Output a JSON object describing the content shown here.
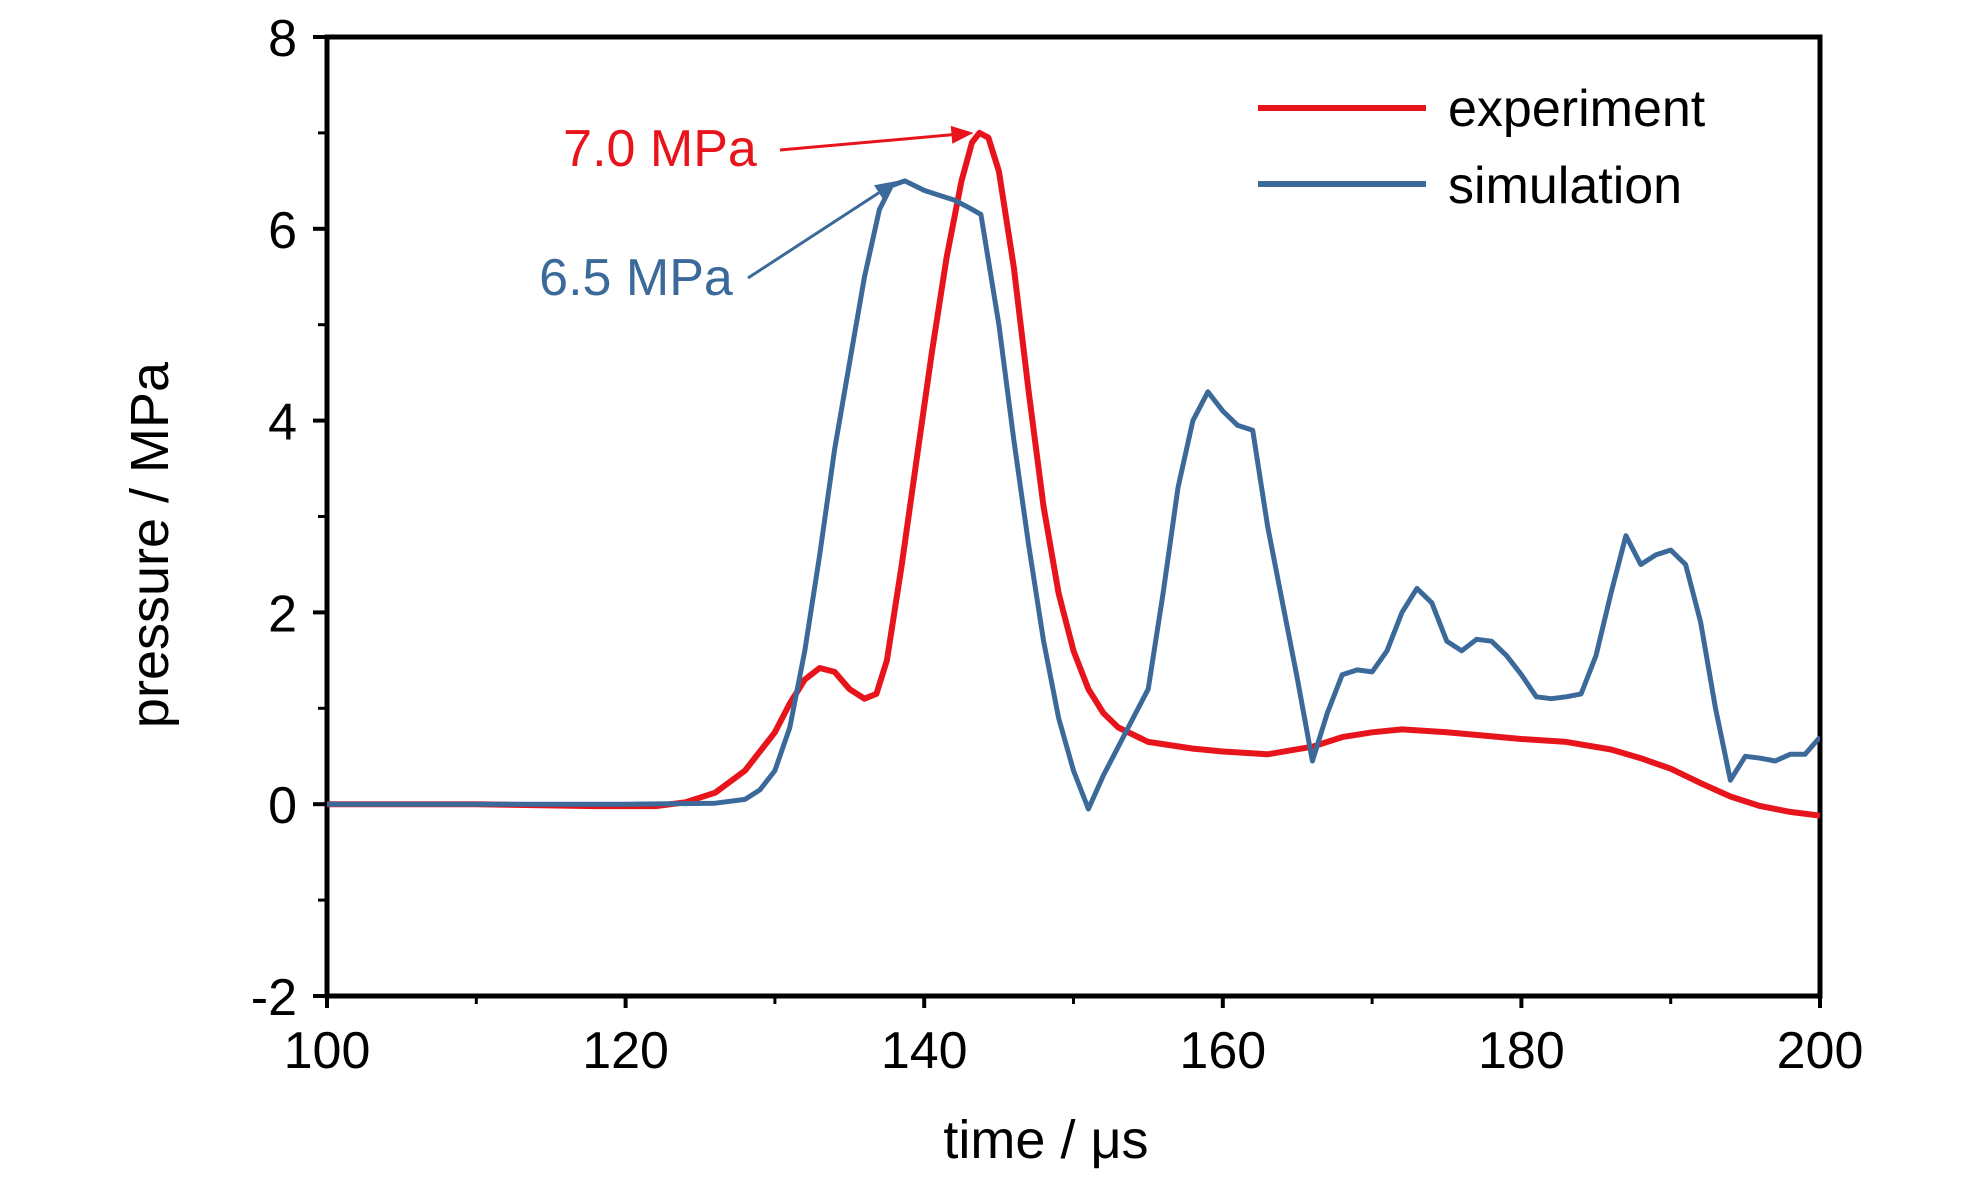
{
  "chart_data": {
    "type": "line",
    "xlabel": "time / μs",
    "ylabel": "pressure / MPa",
    "xlim": [
      100,
      200
    ],
    "ylim": [
      -2,
      8
    ],
    "x_ticks": [
      100,
      120,
      140,
      160,
      180,
      200
    ],
    "y_ticks": [
      -2,
      0,
      2,
      4,
      6,
      8
    ],
    "x_ticks_display": [
      "100",
      "120",
      "140",
      "160",
      "180",
      "200"
    ],
    "y_ticks_display": [
      "-2",
      "0",
      "2",
      "4",
      "6",
      "8"
    ],
    "grid": false,
    "legend_position": "top-right",
    "series": [
      {
        "name": "experiment",
        "color": "#e8141c",
        "points": [
          [
            100,
            0
          ],
          [
            110,
            0
          ],
          [
            118,
            -0.02
          ],
          [
            122,
            -0.02
          ],
          [
            124,
            0.02
          ],
          [
            126,
            0.12
          ],
          [
            128,
            0.35
          ],
          [
            130,
            0.75
          ],
          [
            131,
            1.05
          ],
          [
            132,
            1.3
          ],
          [
            133,
            1.42
          ],
          [
            134,
            1.38
          ],
          [
            135,
            1.2
          ],
          [
            136,
            1.1
          ],
          [
            136.8,
            1.15
          ],
          [
            137.5,
            1.5
          ],
          [
            138.5,
            2.5
          ],
          [
            139.5,
            3.6
          ],
          [
            140.5,
            4.7
          ],
          [
            141.5,
            5.7
          ],
          [
            142.5,
            6.5
          ],
          [
            143.2,
            6.9
          ],
          [
            143.7,
            7.0
          ],
          [
            144.3,
            6.95
          ],
          [
            145,
            6.6
          ],
          [
            146,
            5.6
          ],
          [
            147,
            4.3
          ],
          [
            148,
            3.1
          ],
          [
            149,
            2.2
          ],
          [
            150,
            1.6
          ],
          [
            151,
            1.2
          ],
          [
            152,
            0.95
          ],
          [
            153,
            0.8
          ],
          [
            155,
            0.65
          ],
          [
            158,
            0.58
          ],
          [
            160,
            0.55
          ],
          [
            163,
            0.52
          ],
          [
            166,
            0.6
          ],
          [
            168,
            0.7
          ],
          [
            170,
            0.75
          ],
          [
            172,
            0.78
          ],
          [
            175,
            0.75
          ],
          [
            180,
            0.68
          ],
          [
            183,
            0.65
          ],
          [
            186,
            0.57
          ],
          [
            188,
            0.48
          ],
          [
            190,
            0.37
          ],
          [
            192,
            0.22
          ],
          [
            194,
            0.08
          ],
          [
            196,
            -0.02
          ],
          [
            198,
            -0.08
          ],
          [
            200,
            -0.12
          ]
        ]
      },
      {
        "name": "simulation",
        "color": "#3b6a9a",
        "points": [
          [
            100,
            0
          ],
          [
            110,
            0
          ],
          [
            120,
            0
          ],
          [
            126,
            0.01
          ],
          [
            128,
            0.05
          ],
          [
            129,
            0.15
          ],
          [
            130,
            0.35
          ],
          [
            131,
            0.8
          ],
          [
            132,
            1.6
          ],
          [
            133,
            2.6
          ],
          [
            134,
            3.7
          ],
          [
            135,
            4.6
          ],
          [
            136,
            5.5
          ],
          [
            137,
            6.2
          ],
          [
            137.8,
            6.45
          ],
          [
            138.7,
            6.5
          ],
          [
            140,
            6.4
          ],
          [
            141,
            6.35
          ],
          [
            142,
            6.3
          ],
          [
            143,
            6.22
          ],
          [
            143.8,
            6.15
          ],
          [
            145,
            5.0
          ],
          [
            146,
            3.8
          ],
          [
            147,
            2.7
          ],
          [
            148,
            1.7
          ],
          [
            149,
            0.9
          ],
          [
            150,
            0.35
          ],
          [
            151,
            -0.05
          ],
          [
            152,
            0.3
          ],
          [
            153,
            0.6
          ],
          [
            154,
            0.9
          ],
          [
            155,
            1.2
          ],
          [
            156,
            2.2
          ],
          [
            157,
            3.3
          ],
          [
            158,
            4.0
          ],
          [
            159,
            4.3
          ],
          [
            160,
            4.1
          ],
          [
            161,
            3.95
          ],
          [
            162,
            3.9
          ],
          [
            163,
            2.9
          ],
          [
            164,
            2.1
          ],
          [
            165,
            1.3
          ],
          [
            166,
            0.45
          ],
          [
            167,
            0.95
          ],
          [
            168,
            1.35
          ],
          [
            169,
            1.4
          ],
          [
            170,
            1.38
          ],
          [
            171,
            1.6
          ],
          [
            172,
            2.0
          ],
          [
            173,
            2.25
          ],
          [
            174,
            2.1
          ],
          [
            175,
            1.7
          ],
          [
            176,
            1.6
          ],
          [
            177,
            1.72
          ],
          [
            178,
            1.7
          ],
          [
            179,
            1.55
          ],
          [
            180,
            1.35
          ],
          [
            181,
            1.12
          ],
          [
            182,
            1.1
          ],
          [
            183,
            1.12
          ],
          [
            184,
            1.15
          ],
          [
            185,
            1.55
          ],
          [
            186,
            2.2
          ],
          [
            187,
            2.8
          ],
          [
            188,
            2.5
          ],
          [
            189,
            2.6
          ],
          [
            190,
            2.65
          ],
          [
            191,
            2.5
          ],
          [
            192,
            1.9
          ],
          [
            193,
            1.0
          ],
          [
            194,
            0.25
          ],
          [
            195,
            0.5
          ],
          [
            196,
            0.48
          ],
          [
            197,
            0.45
          ],
          [
            198,
            0.52
          ],
          [
            199,
            0.52
          ],
          [
            200,
            0.7
          ]
        ]
      }
    ],
    "annotations": [
      {
        "text": "7.0 MPa",
        "color": "#e8141c",
        "target": [
          143.3,
          7.0
        ]
      },
      {
        "text": "6.5 MPa",
        "color": "#3b6a9a",
        "target": [
          138.2,
          6.5
        ]
      }
    ]
  }
}
